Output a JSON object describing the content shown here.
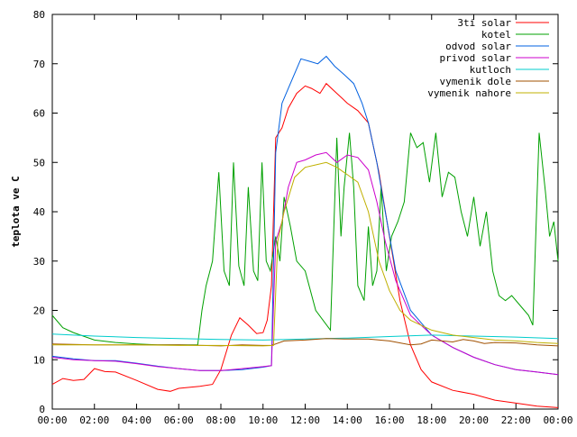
{
  "chart_data": {
    "type": "line",
    "title": "",
    "xlabel": "",
    "ylabel": "teplota ve C",
    "xlim": [
      "00:00",
      "00:00"
    ],
    "ylim": [
      0,
      80
    ],
    "grid": false,
    "legend_position": "top-right",
    "x_ticks": [
      "00:00",
      "02:00",
      "04:00",
      "06:00",
      "08:00",
      "10:00",
      "12:00",
      "14:00",
      "16:00",
      "18:00",
      "20:00",
      "22:00",
      "00:00"
    ],
    "y_ticks": [
      "0",
      "10",
      "20",
      "30",
      "40",
      "50",
      "60",
      "70",
      "80"
    ],
    "series": [
      {
        "name": "3ti solar",
        "color": "#ff0000",
        "points": [
          [
            0,
            5
          ],
          [
            0.5,
            6.2
          ],
          [
            1,
            5.8
          ],
          [
            1.5,
            6
          ],
          [
            2,
            8.2
          ],
          [
            2.5,
            7.6
          ],
          [
            3,
            7.5
          ],
          [
            4,
            5.8
          ],
          [
            5,
            4
          ],
          [
            5.6,
            3.6
          ],
          [
            6,
            4.2
          ],
          [
            7,
            4.6
          ],
          [
            7.6,
            5
          ],
          [
            8,
            8
          ],
          [
            8.5,
            15
          ],
          [
            8.9,
            18.5
          ],
          [
            9.3,
            17
          ],
          [
            9.7,
            15.3
          ],
          [
            10,
            15.5
          ],
          [
            10.2,
            18
          ],
          [
            10.4,
            25
          ],
          [
            10.6,
            55
          ],
          [
            10.9,
            57
          ],
          [
            11.2,
            61
          ],
          [
            11.6,
            64
          ],
          [
            12,
            65.5
          ],
          [
            12.3,
            65
          ],
          [
            12.7,
            64
          ],
          [
            13,
            66
          ],
          [
            13.5,
            64
          ],
          [
            14,
            62
          ],
          [
            14.5,
            60.5
          ],
          [
            15,
            58
          ],
          [
            15.5,
            48
          ],
          [
            16,
            35
          ],
          [
            16.5,
            22
          ],
          [
            17,
            13
          ],
          [
            17.5,
            8
          ],
          [
            18,
            5.5
          ],
          [
            19,
            3.8
          ],
          [
            20,
            3
          ],
          [
            21,
            1.8
          ],
          [
            22,
            1.2
          ],
          [
            23,
            0.6
          ],
          [
            24,
            0.3
          ]
        ]
      },
      {
        "name": "kotel",
        "color": "#00a000",
        "points": [
          [
            0,
            19
          ],
          [
            0.5,
            16.5
          ],
          [
            1,
            15.5
          ],
          [
            2,
            14
          ],
          [
            3,
            13.5
          ],
          [
            4,
            13.2
          ],
          [
            5,
            13
          ],
          [
            6,
            13
          ],
          [
            6.9,
            13
          ],
          [
            7.1,
            20
          ],
          [
            7.3,
            25
          ],
          [
            7.6,
            30
          ],
          [
            7.9,
            48
          ],
          [
            8.15,
            28
          ],
          [
            8.4,
            25
          ],
          [
            8.6,
            50
          ],
          [
            8.85,
            29
          ],
          [
            9.1,
            25
          ],
          [
            9.3,
            45
          ],
          [
            9.55,
            28
          ],
          [
            9.75,
            26
          ],
          [
            9.95,
            50
          ],
          [
            10.15,
            30
          ],
          [
            10.35,
            28
          ],
          [
            10.6,
            35
          ],
          [
            10.8,
            30
          ],
          [
            11,
            43
          ],
          [
            11.3,
            37
          ],
          [
            11.6,
            30
          ],
          [
            12,
            28
          ],
          [
            12.5,
            20
          ],
          [
            13.2,
            16
          ],
          [
            13.5,
            55
          ],
          [
            13.7,
            35
          ],
          [
            13.85,
            45
          ],
          [
            14.1,
            56
          ],
          [
            14.3,
            45
          ],
          [
            14.5,
            25
          ],
          [
            14.8,
            22
          ],
          [
            15,
            37
          ],
          [
            15.2,
            25
          ],
          [
            15.4,
            28
          ],
          [
            15.6,
            45
          ],
          [
            15.85,
            28
          ],
          [
            16.1,
            35
          ],
          [
            16.4,
            38
          ],
          [
            16.7,
            42
          ],
          [
            17,
            56
          ],
          [
            17.3,
            53
          ],
          [
            17.6,
            54
          ],
          [
            17.9,
            46
          ],
          [
            18.2,
            56
          ],
          [
            18.5,
            43
          ],
          [
            18.8,
            48
          ],
          [
            19.1,
            47
          ],
          [
            19.4,
            40
          ],
          [
            19.7,
            35
          ],
          [
            20,
            43
          ],
          [
            20.3,
            33
          ],
          [
            20.6,
            40
          ],
          [
            20.9,
            28
          ],
          [
            21.2,
            23
          ],
          [
            21.5,
            22
          ],
          [
            21.8,
            23
          ],
          [
            22.2,
            21
          ],
          [
            22.6,
            19
          ],
          [
            22.8,
            17
          ],
          [
            23.1,
            56
          ],
          [
            23.4,
            44
          ],
          [
            23.6,
            35
          ],
          [
            23.8,
            38
          ],
          [
            24,
            30
          ]
        ]
      },
      {
        "name": "odvod solar",
        "color": "#0060e0",
        "points": [
          [
            0,
            10.7
          ],
          [
            1,
            10.2
          ],
          [
            2,
            9.8
          ],
          [
            3,
            9.8
          ],
          [
            4,
            9.3
          ],
          [
            5,
            8.7
          ],
          [
            6,
            8.2
          ],
          [
            7,
            7.8
          ],
          [
            8,
            7.8
          ],
          [
            9,
            8
          ],
          [
            10,
            8.5
          ],
          [
            10.4,
            8.8
          ],
          [
            10.6,
            52
          ],
          [
            10.9,
            62
          ],
          [
            11.2,
            65
          ],
          [
            11.5,
            68
          ],
          [
            11.8,
            71
          ],
          [
            12.2,
            70.5
          ],
          [
            12.6,
            70
          ],
          [
            13,
            71.5
          ],
          [
            13.4,
            69.5
          ],
          [
            13.8,
            68
          ],
          [
            14.3,
            66
          ],
          [
            14.7,
            62
          ],
          [
            15,
            58
          ],
          [
            15.4,
            50
          ],
          [
            15.8,
            40
          ],
          [
            16.3,
            28
          ],
          [
            17,
            20
          ],
          [
            18,
            15
          ],
          [
            19,
            12.5
          ],
          [
            20,
            10.5
          ],
          [
            21,
            9
          ],
          [
            22,
            8
          ],
          [
            23,
            7.5
          ],
          [
            24,
            7
          ]
        ]
      },
      {
        "name": "privod solar",
        "color": "#cc00cc",
        "points": [
          [
            0,
            10.5
          ],
          [
            1,
            10
          ],
          [
            2,
            9.8
          ],
          [
            3,
            9.7
          ],
          [
            4,
            9.2
          ],
          [
            5,
            8.6
          ],
          [
            6,
            8.2
          ],
          [
            7,
            7.8
          ],
          [
            8,
            7.8
          ],
          [
            9,
            8.2
          ],
          [
            10,
            8.6
          ],
          [
            10.4,
            8.8
          ],
          [
            10.6,
            34
          ],
          [
            10.9,
            38
          ],
          [
            11.2,
            45
          ],
          [
            11.6,
            50
          ],
          [
            12,
            50.5
          ],
          [
            12.5,
            51.5
          ],
          [
            13,
            52
          ],
          [
            13.5,
            50
          ],
          [
            14,
            51.5
          ],
          [
            14.5,
            51
          ],
          [
            15,
            48.5
          ],
          [
            15.4,
            42
          ],
          [
            15.8,
            34
          ],
          [
            16.3,
            26
          ],
          [
            17,
            19
          ],
          [
            18,
            15
          ],
          [
            19,
            12.5
          ],
          [
            20,
            10.5
          ],
          [
            21,
            9
          ],
          [
            22,
            8
          ],
          [
            23,
            7.5
          ],
          [
            24,
            7
          ]
        ]
      },
      {
        "name": "kutloch",
        "color": "#00cccc",
        "points": [
          [
            0,
            15.2
          ],
          [
            2,
            14.8
          ],
          [
            4,
            14.5
          ],
          [
            6,
            14.3
          ],
          [
            8,
            14.1
          ],
          [
            10,
            14
          ],
          [
            12,
            14.2
          ],
          [
            14,
            14.4
          ],
          [
            16,
            14.7
          ],
          [
            18,
            15
          ],
          [
            20,
            14.8
          ],
          [
            22,
            14.6
          ],
          [
            24,
            14.3
          ]
        ]
      },
      {
        "name": "vymenik dole",
        "color": "#a05000",
        "points": [
          [
            0,
            13.2
          ],
          [
            2,
            13
          ],
          [
            4,
            13
          ],
          [
            6,
            13
          ],
          [
            8,
            12.8
          ],
          [
            9,
            13
          ],
          [
            10,
            12.9
          ],
          [
            10.4,
            12.9
          ],
          [
            11,
            13.8
          ],
          [
            12,
            14
          ],
          [
            13,
            14.3
          ],
          [
            14,
            14.2
          ],
          [
            15,
            14.2
          ],
          [
            16,
            13.8
          ],
          [
            17,
            13
          ],
          [
            17.5,
            13.2
          ],
          [
            18,
            14
          ],
          [
            18.5,
            13.8
          ],
          [
            19,
            13.6
          ],
          [
            19.5,
            14.1
          ],
          [
            20,
            13.8
          ],
          [
            20.5,
            13.3
          ],
          [
            21,
            13.5
          ],
          [
            22,
            13.4
          ],
          [
            23,
            13
          ],
          [
            24,
            12.8
          ]
        ]
      },
      {
        "name": "vymenik nahore",
        "color": "#c0b000",
        "points": [
          [
            0,
            13
          ],
          [
            2,
            13
          ],
          [
            4,
            13
          ],
          [
            6,
            12.9
          ],
          [
            8,
            12.9
          ],
          [
            10,
            12.8
          ],
          [
            10.5,
            12.9
          ],
          [
            10.7,
            34
          ],
          [
            11,
            40
          ],
          [
            11.5,
            47
          ],
          [
            12,
            49
          ],
          [
            12.5,
            49.5
          ],
          [
            13,
            50
          ],
          [
            13.5,
            49
          ],
          [
            14,
            47.5
          ],
          [
            14.5,
            46
          ],
          [
            15,
            40
          ],
          [
            15.5,
            30
          ],
          [
            16,
            24
          ],
          [
            16.5,
            20
          ],
          [
            17,
            18
          ],
          [
            18,
            16
          ],
          [
            19,
            15
          ],
          [
            20,
            14.5
          ],
          [
            21,
            14
          ],
          [
            22,
            13.8
          ],
          [
            23,
            13.5
          ],
          [
            24,
            13.3
          ]
        ]
      }
    ]
  }
}
